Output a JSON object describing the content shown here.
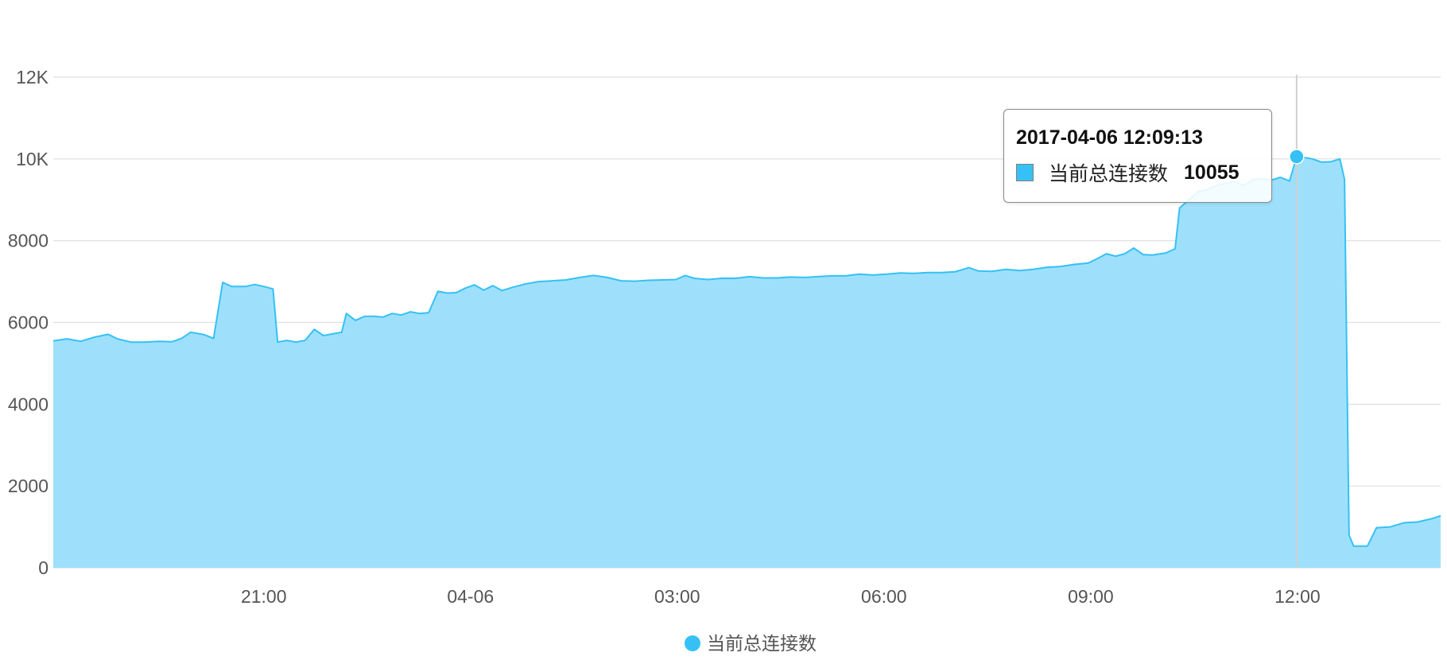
{
  "chart_data": {
    "type": "area",
    "x_tick_labels": [
      "21:00",
      "04-06",
      "03:00",
      "06:00",
      "09:00",
      "12:00"
    ],
    "y_tick_labels": [
      "0",
      "2000",
      "4000",
      "6000",
      "8000",
      "10K",
      "12K"
    ],
    "ylim": [
      0,
      12000
    ],
    "grid": true,
    "legend": {
      "position": "bottom-center",
      "label": "当前总连接数"
    },
    "series": [
      {
        "name": "当前总连接数",
        "color": "#35c1f5",
        "fill_color": "#9ee0fb",
        "points": [
          [
            0,
            5550
          ],
          [
            3,
            5600
          ],
          [
            6,
            5540
          ],
          [
            9,
            5640
          ],
          [
            12,
            5710
          ],
          [
            14,
            5600
          ],
          [
            17,
            5520
          ],
          [
            20,
            5520
          ],
          [
            23,
            5540
          ],
          [
            26,
            5530
          ],
          [
            28,
            5610
          ],
          [
            30,
            5760
          ],
          [
            33,
            5700
          ],
          [
            35,
            5610
          ],
          [
            37,
            6980
          ],
          [
            39,
            6880
          ],
          [
            42,
            6880
          ],
          [
            44,
            6930
          ],
          [
            46,
            6880
          ],
          [
            48,
            6820
          ],
          [
            49,
            5520
          ],
          [
            51,
            5560
          ],
          [
            53,
            5520
          ],
          [
            55,
            5560
          ],
          [
            57,
            5830
          ],
          [
            59,
            5680
          ],
          [
            61,
            5720
          ],
          [
            63,
            5760
          ],
          [
            64,
            6220
          ],
          [
            66,
            6050
          ],
          [
            68,
            6150
          ],
          [
            70,
            6150
          ],
          [
            72,
            6130
          ],
          [
            74,
            6220
          ],
          [
            76,
            6180
          ],
          [
            78,
            6260
          ],
          [
            80,
            6220
          ],
          [
            82,
            6240
          ],
          [
            84,
            6760
          ],
          [
            86,
            6720
          ],
          [
            88,
            6730
          ],
          [
            90,
            6840
          ],
          [
            92,
            6920
          ],
          [
            94,
            6790
          ],
          [
            96,
            6900
          ],
          [
            98,
            6780
          ],
          [
            100,
            6850
          ],
          [
            103,
            6940
          ],
          [
            106,
            7000
          ],
          [
            109,
            7020
          ],
          [
            112,
            7040
          ],
          [
            115,
            7100
          ],
          [
            118,
            7150
          ],
          [
            121,
            7100
          ],
          [
            124,
            7020
          ],
          [
            127,
            7010
          ],
          [
            130,
            7030
          ],
          [
            133,
            7040
          ],
          [
            136,
            7050
          ],
          [
            138,
            7150
          ],
          [
            140,
            7080
          ],
          [
            143,
            7050
          ],
          [
            146,
            7080
          ],
          [
            149,
            7080
          ],
          [
            152,
            7120
          ],
          [
            155,
            7090
          ],
          [
            158,
            7090
          ],
          [
            161,
            7110
          ],
          [
            164,
            7100
          ],
          [
            167,
            7120
          ],
          [
            170,
            7140
          ],
          [
            173,
            7140
          ],
          [
            176,
            7180
          ],
          [
            179,
            7160
          ],
          [
            182,
            7180
          ],
          [
            185,
            7210
          ],
          [
            188,
            7200
          ],
          [
            191,
            7220
          ],
          [
            194,
            7220
          ],
          [
            197,
            7240
          ],
          [
            200,
            7340
          ],
          [
            202,
            7260
          ],
          [
            205,
            7250
          ],
          [
            208,
            7300
          ],
          [
            211,
            7270
          ],
          [
            214,
            7300
          ],
          [
            217,
            7350
          ],
          [
            220,
            7370
          ],
          [
            223,
            7420
          ],
          [
            226,
            7450
          ],
          [
            228,
            7560
          ],
          [
            230,
            7680
          ],
          [
            232,
            7620
          ],
          [
            234,
            7680
          ],
          [
            236,
            7820
          ],
          [
            238,
            7660
          ],
          [
            240,
            7650
          ],
          [
            243,
            7700
          ],
          [
            245,
            7800
          ],
          [
            246,
            8800
          ],
          [
            248,
            9000
          ],
          [
            250,
            9200
          ],
          [
            252,
            9250
          ],
          [
            254,
            9350
          ],
          [
            256,
            9400
          ],
          [
            258,
            9450
          ],
          [
            260,
            9350
          ],
          [
            262,
            9500
          ],
          [
            264,
            9520
          ],
          [
            266,
            9480
          ],
          [
            268,
            9550
          ],
          [
            270,
            9460
          ],
          [
            271.55,
            10055
          ],
          [
            273,
            10040
          ],
          [
            275,
            10000
          ],
          [
            277,
            9920
          ],
          [
            279,
            9930
          ],
          [
            281,
            10000
          ],
          [
            282,
            9500
          ],
          [
            283,
            800
          ],
          [
            284,
            530
          ],
          [
            287,
            530
          ],
          [
            289,
            980
          ],
          [
            292,
            1000
          ],
          [
            295,
            1100
          ],
          [
            298,
            1120
          ],
          [
            301,
            1200
          ],
          [
            303,
            1270
          ]
        ]
      }
    ],
    "tooltip": {
      "time": "2017-04-06 12:09:13",
      "series": "当前总连接数",
      "value": "10055",
      "crosshair_index": 271.55
    }
  }
}
